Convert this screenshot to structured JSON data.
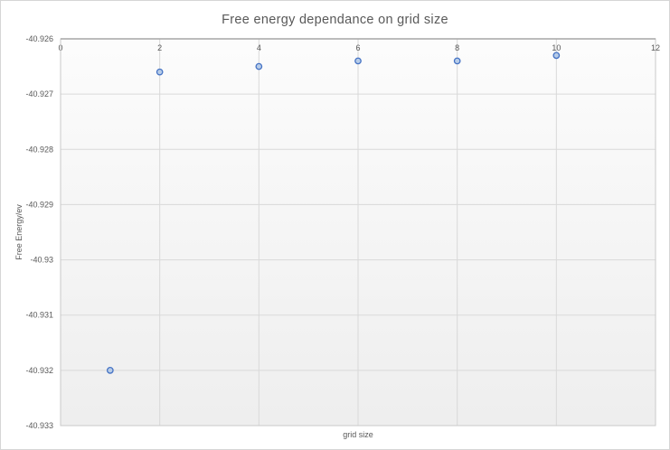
{
  "chart_data": {
    "type": "scatter",
    "title": "Free energy dependance on grid size",
    "xlabel": "grid size",
    "ylabel": "Free Energy/ev",
    "x": [
      1,
      2,
      4,
      6,
      8,
      10
    ],
    "y": [
      -40.932,
      -40.9266,
      -40.9265,
      -40.9264,
      -40.9264,
      -40.9263
    ],
    "xlim": [
      0,
      12
    ],
    "ylim": [
      -40.933,
      -40.926
    ],
    "x_tick_labels": [
      "0",
      "2",
      "4",
      "6",
      "8",
      "10",
      "12"
    ],
    "y_tick_labels": [
      "-40.926",
      "-40.927",
      "-40.928",
      "-40.929",
      "-40.93",
      "-40.931",
      "-40.932",
      "-40.933"
    ],
    "grid": true,
    "legend": false,
    "x_labels_position": "inside-top",
    "colors": {
      "text": "#595959",
      "gridline": "#d9d9d9",
      "axis_line": "#a6a6a6",
      "plot_border": "#c9c9c9",
      "plot_bg_top": "#fcfcfc",
      "plot_bg_bottom": "#eeeeee",
      "marker_stroke": "#4472c4",
      "marker_fill": "#b7cce8"
    }
  }
}
